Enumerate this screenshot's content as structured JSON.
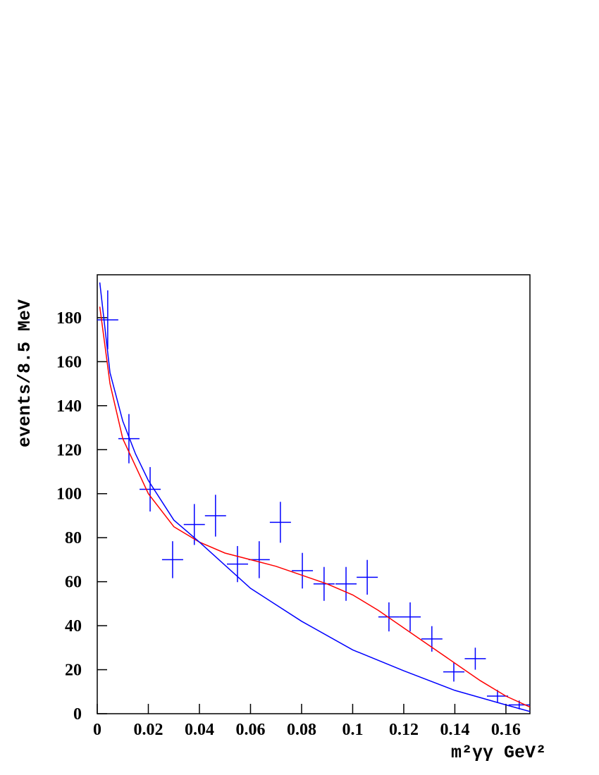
{
  "chart_data": {
    "type": "scatter",
    "ylabel": "events/8.5 MeV",
    "xlabel": "m²γγ GeV²",
    "xlim": [
      0,
      0.1694
    ],
    "ylim": [
      0,
      199.5
    ],
    "xticks": [
      0,
      0.02,
      0.04,
      0.06,
      0.08,
      0.1,
      0.12,
      0.14,
      0.16
    ],
    "yticks": [
      0,
      20,
      40,
      60,
      80,
      100,
      120,
      140,
      160,
      180
    ],
    "series": [
      {
        "color": "#0000ff",
        "x": [
          0.0041,
          0.0124,
          0.0207,
          0.0295,
          0.038,
          0.0463,
          0.0549,
          0.0634,
          0.0717,
          0.0803,
          0.0888,
          0.0974,
          0.1057,
          0.1142,
          0.1225,
          0.131,
          0.1396,
          0.148,
          0.1567,
          0.1652
        ],
        "values": [
          179,
          125,
          102,
          70,
          86,
          90,
          68,
          70,
          87,
          65,
          59,
          59,
          62,
          44,
          44,
          34,
          19,
          25,
          8,
          4
        ],
        "errors": [
          13.4,
          11.2,
          10.1,
          8.4,
          9.3,
          9.5,
          8.2,
          8.4,
          9.3,
          8.1,
          7.7,
          7.7,
          7.9,
          6.6,
          6.6,
          5.8,
          4.4,
          5.0,
          2.8,
          2.0
        ]
      },
      {
        "color": "#ff0000",
        "x": [
          0.001,
          0.005,
          0.01,
          0.02,
          0.03,
          0.04,
          0.05,
          0.06,
          0.07,
          0.08,
          0.09,
          0.1,
          0.11,
          0.12,
          0.13,
          0.14,
          0.15,
          0.16,
          0.1694
        ],
        "values": [
          185,
          150,
          125,
          100,
          85,
          78,
          73,
          70,
          67,
          63,
          59,
          54,
          47,
          39,
          31,
          23,
          15,
          8,
          3
        ]
      },
      {
        "color": "#0000ff",
        "x": [
          0.001,
          0.005,
          0.01,
          0.015,
          0.02,
          0.03,
          0.04,
          0.06,
          0.08,
          0.1,
          0.12,
          0.14,
          0.16,
          0.1694
        ],
        "values": [
          196,
          155,
          133,
          118,
          106,
          88,
          78,
          57,
          42,
          29,
          19.5,
          10.6,
          4,
          1
        ]
      }
    ]
  }
}
